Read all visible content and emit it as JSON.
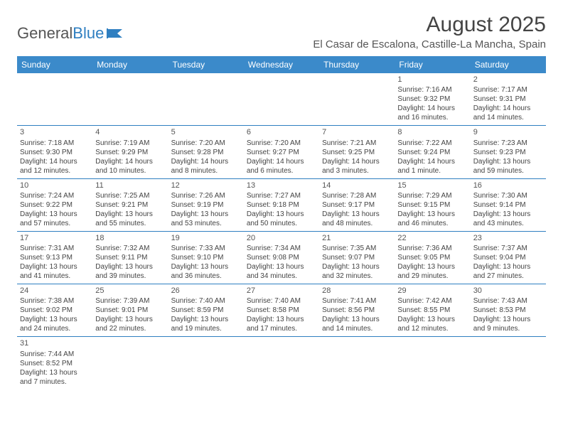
{
  "logo": {
    "text1": "General",
    "text2": "Blue"
  },
  "title": "August 2025",
  "location": "El Casar de Escalona, Castille-La Mancha, Spain",
  "colors": {
    "header_bg": "#3b8aca",
    "header_text": "#ffffff",
    "border": "#2f7fc1"
  },
  "weekdays": [
    "Sunday",
    "Monday",
    "Tuesday",
    "Wednesday",
    "Thursday",
    "Friday",
    "Saturday"
  ],
  "weeks": [
    [
      null,
      null,
      null,
      null,
      null,
      {
        "n": "1",
        "sr": "Sunrise: 7:16 AM",
        "ss": "Sunset: 9:32 PM",
        "dl": "Daylight: 14 hours and 16 minutes."
      },
      {
        "n": "2",
        "sr": "Sunrise: 7:17 AM",
        "ss": "Sunset: 9:31 PM",
        "dl": "Daylight: 14 hours and 14 minutes."
      }
    ],
    [
      {
        "n": "3",
        "sr": "Sunrise: 7:18 AM",
        "ss": "Sunset: 9:30 PM",
        "dl": "Daylight: 14 hours and 12 minutes."
      },
      {
        "n": "4",
        "sr": "Sunrise: 7:19 AM",
        "ss": "Sunset: 9:29 PM",
        "dl": "Daylight: 14 hours and 10 minutes."
      },
      {
        "n": "5",
        "sr": "Sunrise: 7:20 AM",
        "ss": "Sunset: 9:28 PM",
        "dl": "Daylight: 14 hours and 8 minutes."
      },
      {
        "n": "6",
        "sr": "Sunrise: 7:20 AM",
        "ss": "Sunset: 9:27 PM",
        "dl": "Daylight: 14 hours and 6 minutes."
      },
      {
        "n": "7",
        "sr": "Sunrise: 7:21 AM",
        "ss": "Sunset: 9:25 PM",
        "dl": "Daylight: 14 hours and 3 minutes."
      },
      {
        "n": "8",
        "sr": "Sunrise: 7:22 AM",
        "ss": "Sunset: 9:24 PM",
        "dl": "Daylight: 14 hours and 1 minute."
      },
      {
        "n": "9",
        "sr": "Sunrise: 7:23 AM",
        "ss": "Sunset: 9:23 PM",
        "dl": "Daylight: 13 hours and 59 minutes."
      }
    ],
    [
      {
        "n": "10",
        "sr": "Sunrise: 7:24 AM",
        "ss": "Sunset: 9:22 PM",
        "dl": "Daylight: 13 hours and 57 minutes."
      },
      {
        "n": "11",
        "sr": "Sunrise: 7:25 AM",
        "ss": "Sunset: 9:21 PM",
        "dl": "Daylight: 13 hours and 55 minutes."
      },
      {
        "n": "12",
        "sr": "Sunrise: 7:26 AM",
        "ss": "Sunset: 9:19 PM",
        "dl": "Daylight: 13 hours and 53 minutes."
      },
      {
        "n": "13",
        "sr": "Sunrise: 7:27 AM",
        "ss": "Sunset: 9:18 PM",
        "dl": "Daylight: 13 hours and 50 minutes."
      },
      {
        "n": "14",
        "sr": "Sunrise: 7:28 AM",
        "ss": "Sunset: 9:17 PM",
        "dl": "Daylight: 13 hours and 48 minutes."
      },
      {
        "n": "15",
        "sr": "Sunrise: 7:29 AM",
        "ss": "Sunset: 9:15 PM",
        "dl": "Daylight: 13 hours and 46 minutes."
      },
      {
        "n": "16",
        "sr": "Sunrise: 7:30 AM",
        "ss": "Sunset: 9:14 PM",
        "dl": "Daylight: 13 hours and 43 minutes."
      }
    ],
    [
      {
        "n": "17",
        "sr": "Sunrise: 7:31 AM",
        "ss": "Sunset: 9:13 PM",
        "dl": "Daylight: 13 hours and 41 minutes."
      },
      {
        "n": "18",
        "sr": "Sunrise: 7:32 AM",
        "ss": "Sunset: 9:11 PM",
        "dl": "Daylight: 13 hours and 39 minutes."
      },
      {
        "n": "19",
        "sr": "Sunrise: 7:33 AM",
        "ss": "Sunset: 9:10 PM",
        "dl": "Daylight: 13 hours and 36 minutes."
      },
      {
        "n": "20",
        "sr": "Sunrise: 7:34 AM",
        "ss": "Sunset: 9:08 PM",
        "dl": "Daylight: 13 hours and 34 minutes."
      },
      {
        "n": "21",
        "sr": "Sunrise: 7:35 AM",
        "ss": "Sunset: 9:07 PM",
        "dl": "Daylight: 13 hours and 32 minutes."
      },
      {
        "n": "22",
        "sr": "Sunrise: 7:36 AM",
        "ss": "Sunset: 9:05 PM",
        "dl": "Daylight: 13 hours and 29 minutes."
      },
      {
        "n": "23",
        "sr": "Sunrise: 7:37 AM",
        "ss": "Sunset: 9:04 PM",
        "dl": "Daylight: 13 hours and 27 minutes."
      }
    ],
    [
      {
        "n": "24",
        "sr": "Sunrise: 7:38 AM",
        "ss": "Sunset: 9:02 PM",
        "dl": "Daylight: 13 hours and 24 minutes."
      },
      {
        "n": "25",
        "sr": "Sunrise: 7:39 AM",
        "ss": "Sunset: 9:01 PM",
        "dl": "Daylight: 13 hours and 22 minutes."
      },
      {
        "n": "26",
        "sr": "Sunrise: 7:40 AM",
        "ss": "Sunset: 8:59 PM",
        "dl": "Daylight: 13 hours and 19 minutes."
      },
      {
        "n": "27",
        "sr": "Sunrise: 7:40 AM",
        "ss": "Sunset: 8:58 PM",
        "dl": "Daylight: 13 hours and 17 minutes."
      },
      {
        "n": "28",
        "sr": "Sunrise: 7:41 AM",
        "ss": "Sunset: 8:56 PM",
        "dl": "Daylight: 13 hours and 14 minutes."
      },
      {
        "n": "29",
        "sr": "Sunrise: 7:42 AM",
        "ss": "Sunset: 8:55 PM",
        "dl": "Daylight: 13 hours and 12 minutes."
      },
      {
        "n": "30",
        "sr": "Sunrise: 7:43 AM",
        "ss": "Sunset: 8:53 PM",
        "dl": "Daylight: 13 hours and 9 minutes."
      }
    ],
    [
      {
        "n": "31",
        "sr": "Sunrise: 7:44 AM",
        "ss": "Sunset: 8:52 PM",
        "dl": "Daylight: 13 hours and 7 minutes."
      },
      null,
      null,
      null,
      null,
      null,
      null
    ]
  ]
}
